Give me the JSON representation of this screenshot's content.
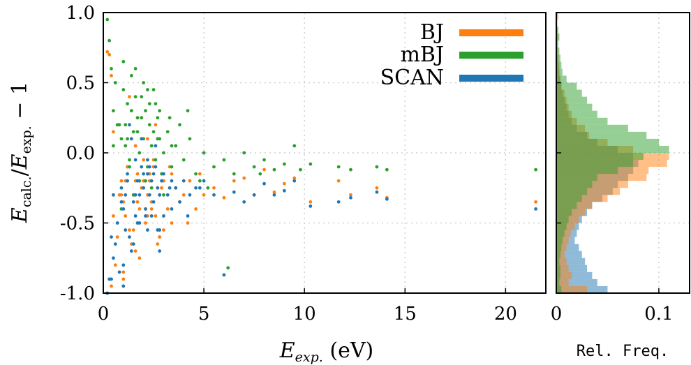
{
  "chart_data": [
    {
      "type": "scatter",
      "xlabel": {
        "main": "E",
        "sub": "exp.",
        "suffix": " (eV)"
      },
      "ylabel": {
        "num": "E",
        "num_sub": "calc.",
        "den": "E",
        "den_sub": "exp.",
        "suffix": " − 1"
      },
      "xlim": [
        0,
        22
      ],
      "ylim": [
        -1.0,
        1.0
      ],
      "x_ticks": [
        0,
        5,
        10,
        15,
        20
      ],
      "x_tick_labels": [
        "0",
        "5",
        "10",
        "15",
        "20"
      ],
      "y_ticks": [
        -1.0,
        -0.5,
        0.0,
        0.5,
        1.0
      ],
      "y_tick_labels": [
        "-1.0",
        "-0.5",
        "0.0",
        "0.5",
        "1.0"
      ],
      "grid": true,
      "legend": "top-right",
      "series": [
        {
          "name": "BJ",
          "color": "#ff7f0e",
          "x": [
            0.2,
            0.3,
            0.4,
            0.5,
            0.7,
            0.9,
            1.0,
            1.1,
            1.2,
            1.3,
            1.4,
            1.5,
            1.6,
            1.7,
            1.8,
            1.9,
            2.0,
            2.1,
            2.2,
            2.3,
            2.4,
            2.5,
            2.6,
            2.7,
            2.8,
            3.0,
            3.2,
            3.4,
            3.6,
            3.8,
            4.0,
            4.3,
            4.6,
            5.0,
            5.5,
            6.0,
            6.5,
            7.0,
            7.5,
            8.0,
            8.5,
            9.0,
            9.5,
            10.3,
            11.7,
            12.3,
            13.6,
            14.1,
            21.5,
            0.6,
            1.0,
            1.4,
            1.8,
            2.2,
            2.6,
            3.0,
            0.8,
            1.2,
            1.6,
            2.0,
            2.4,
            2.8,
            3.4,
            0.5,
            1.1,
            1.7,
            2.3,
            2.9,
            1.3,
            1.9,
            2.5,
            0.9,
            1.5,
            2.1,
            2.7,
            3.3,
            0.4,
            1.0,
            1.6,
            2.2,
            2.8,
            4.2,
            4.8
          ],
          "y": [
            0.72,
            0.7,
            0.55,
            0.15,
            -0.6,
            -0.2,
            -0.35,
            -0.45,
            -0.1,
            -0.55,
            0.3,
            -0.3,
            -0.7,
            -0.15,
            -0.4,
            -0.25,
            -0.05,
            -0.5,
            -0.3,
            -0.2,
            -0.35,
            -0.1,
            -0.45,
            -0.25,
            -0.3,
            -0.2,
            -0.4,
            -0.15,
            -0.25,
            -0.35,
            -0.3,
            -0.2,
            -0.4,
            -0.3,
            -0.25,
            -0.32,
            -0.2,
            -0.18,
            -0.3,
            -0.12,
            -0.28,
            -0.22,
            -0.18,
            -0.35,
            -0.2,
            -0.3,
            -0.25,
            -0.32,
            -0.35,
            -0.8,
            -0.9,
            -0.65,
            -0.75,
            0.1,
            0.2,
            -0.55,
            -0.3,
            -0.1,
            0.05,
            -0.2,
            -0.4,
            -0.6,
            -0.5,
            -0.45,
            -0.2,
            -0.35,
            -0.15,
            -0.25,
            0.4,
            0.25,
            -0.05,
            -0.3,
            -0.55,
            -0.4,
            -0.65,
            -0.1,
            -0.95,
            -0.85,
            -0.2,
            -0.45,
            -0.6,
            -0.5,
            -0.15
          ]
        },
        {
          "name": "mBJ",
          "color": "#2ca02c",
          "x": [
            0.2,
            0.3,
            0.4,
            0.5,
            0.7,
            0.9,
            1.0,
            1.1,
            1.2,
            1.3,
            1.4,
            1.5,
            1.6,
            1.7,
            1.8,
            1.9,
            2.0,
            2.1,
            2.2,
            2.3,
            2.4,
            2.5,
            2.6,
            2.7,
            2.8,
            3.0,
            3.2,
            3.4,
            3.6,
            3.8,
            4.0,
            4.3,
            4.6,
            5.0,
            5.5,
            6.0,
            6.5,
            7.0,
            7.5,
            8.0,
            8.5,
            9.0,
            9.5,
            10.3,
            11.7,
            12.3,
            13.6,
            14.1,
            21.5,
            0.6,
            1.0,
            1.4,
            1.8,
            2.2,
            2.6,
            3.0,
            0.8,
            1.2,
            1.6,
            2.0,
            2.4,
            2.8,
            3.4,
            0.5,
            1.1,
            1.7,
            2.3,
            2.9,
            1.3,
            1.9,
            2.5,
            0.9,
            1.5,
            2.1,
            2.7,
            3.3,
            4.2,
            4.8,
            5.2,
            6.2,
            7.8,
            9.8
          ],
          "y": [
            0.95,
            0.8,
            0.6,
            0.3,
            0.2,
            0.1,
            0.45,
            0.05,
            0.35,
            -0.05,
            0.55,
            0.15,
            0.6,
            0.25,
            0.0,
            0.4,
            0.1,
            0.3,
            -0.1,
            0.2,
            0.05,
            0.15,
            -0.05,
            0.25,
            0.1,
            0.0,
            0.15,
            -0.1,
            0.05,
            0.2,
            -0.05,
            0.1,
            -0.15,
            0.0,
            -0.1,
            -0.05,
            -0.15,
            0.0,
            -0.1,
            -0.05,
            -0.12,
            -0.08,
            0.05,
            -0.08,
            -0.1,
            -0.12,
            -0.1,
            -0.12,
            -0.12,
            0.5,
            0.65,
            0.3,
            -0.2,
            0.45,
            0.35,
            -0.3,
            0.2,
            0.1,
            0.4,
            0.5,
            -0.25,
            0.3,
            0.05,
            0.05,
            0.2,
            0.15,
            0.35,
            -0.15,
            -0.1,
            0.25,
            0.45,
            -0.4,
            -0.3,
            -0.2,
            0.1,
            0.25,
            0.3,
            -0.2,
            -0.25,
            -0.82,
            -0.15,
            -0.12
          ]
        },
        {
          "name": "SCAN",
          "color": "#1f77b4",
          "x": [
            0.2,
            0.3,
            0.4,
            0.5,
            0.7,
            0.9,
            1.0,
            1.1,
            1.2,
            1.3,
            1.4,
            1.5,
            1.6,
            1.7,
            1.8,
            1.9,
            2.0,
            2.1,
            2.2,
            2.3,
            2.4,
            2.5,
            2.6,
            2.7,
            2.8,
            3.0,
            3.2,
            3.4,
            3.6,
            3.8,
            4.0,
            4.3,
            4.6,
            5.0,
            5.5,
            6.0,
            6.5,
            7.0,
            7.5,
            8.0,
            8.5,
            9.0,
            9.5,
            10.3,
            11.7,
            12.3,
            13.6,
            14.1,
            21.5,
            0.6,
            1.0,
            1.4,
            1.8,
            2.2,
            2.6,
            3.0,
            0.8,
            1.2,
            1.6,
            2.0,
            2.4,
            2.8,
            3.4,
            0.5,
            1.1,
            1.7,
            2.3,
            2.9,
            1.3,
            1.9,
            2.5,
            0.9,
            1.5,
            2.1,
            2.7,
            3.3,
            0.4,
            1.0,
            1.6,
            2.2,
            2.8,
            4.2,
            4.8
          ],
          "y": [
            -1.0,
            -0.9,
            -0.6,
            -0.3,
            -0.5,
            -0.25,
            -0.4,
            -0.55,
            -0.15,
            -0.6,
            0.1,
            -0.35,
            -0.45,
            -0.2,
            -0.3,
            -0.1,
            -0.25,
            -0.4,
            -0.15,
            -0.3,
            -0.2,
            -0.35,
            -0.1,
            -0.25,
            -0.3,
            -0.15,
            -0.3,
            -0.2,
            -0.25,
            -0.35,
            -0.2,
            -0.3,
            -0.25,
            -0.2,
            -0.3,
            -0.87,
            -0.28,
            -0.35,
            -0.3,
            -0.22,
            -0.3,
            -0.27,
            -0.2,
            -0.38,
            -0.35,
            -0.32,
            -0.28,
            -0.33,
            -0.4,
            -0.65,
            -0.95,
            -0.7,
            -0.5,
            -0.05,
            0.05,
            -0.45,
            -0.85,
            -0.2,
            -0.05,
            -0.15,
            -0.45,
            -0.55,
            -0.4,
            -0.75,
            -0.3,
            -0.5,
            -0.1,
            -0.2,
            0.2,
            0.1,
            -0.15,
            -0.35,
            -0.65,
            -0.45,
            -0.55,
            -0.25,
            -0.9,
            -0.8,
            -0.3,
            -0.55,
            -0.7,
            -0.45,
            -0.25
          ]
        }
      ]
    },
    {
      "type": "bar",
      "orientation": "horizontal",
      "xlabel": "Rel. Freq.",
      "xlim": [
        0,
        0.13
      ],
      "x_ticks": [
        0,
        0.1
      ],
      "x_tick_labels": [
        "0",
        "0.1"
      ],
      "bin_width": 0.05,
      "bins_start": [
        0.0,
        0.05,
        0.1,
        0.15,
        0.2,
        0.25,
        0.3,
        0.35,
        0.4,
        0.45,
        0.5,
        0.55,
        0.6,
        0.65,
        0.7,
        0.75,
        0.8,
        0.85,
        0.9,
        0.95,
        1.0,
        1.05,
        1.1,
        1.15,
        1.2,
        1.25,
        1.3,
        1.35,
        1.4,
        1.45,
        1.5,
        1.55,
        1.6,
        1.65,
        1.7,
        1.75,
        1.8,
        1.85,
        1.9,
        1.95
      ],
      "series": [
        {
          "name": "BJ",
          "color": "#ff7f0e",
          "values": [
            0.03,
            0.012,
            0.015,
            0.012,
            0.01,
            0.008,
            0.01,
            0.012,
            0.014,
            0.018,
            0.022,
            0.028,
            0.035,
            0.05,
            0.062,
            0.07,
            0.088,
            0.09,
            0.108,
            0.11,
            0.075,
            0.05,
            0.032,
            0.028,
            0.02,
            0.015,
            0.012,
            0.01,
            0.008,
            0.005,
            0.004,
            0.003,
            0.003,
            0.002,
            0.002,
            0.001,
            0.002,
            0.001,
            0.001,
            0.002
          ]
        },
        {
          "name": "mBJ",
          "color": "#2ca02c",
          "values": [
            0.005,
            0.003,
            0.004,
            0.004,
            0.003,
            0.004,
            0.005,
            0.006,
            0.008,
            0.01,
            0.012,
            0.015,
            0.02,
            0.025,
            0.03,
            0.035,
            0.04,
            0.06,
            0.075,
            0.085,
            0.11,
            0.1,
            0.088,
            0.07,
            0.05,
            0.04,
            0.035,
            0.03,
            0.025,
            0.02,
            0.01,
            0.006,
            0.005,
            0.004,
            0.003,
            0.002,
            0.003,
            0.002,
            0.001,
            0.001
          ]
        },
        {
          "name": "SCAN",
          "color": "#1f77b4",
          "values": [
            0.05,
            0.04,
            0.035,
            0.03,
            0.028,
            0.025,
            0.022,
            0.018,
            0.02,
            0.022,
            0.025,
            0.03,
            0.035,
            0.045,
            0.055,
            0.06,
            0.07,
            0.075,
            0.08,
            0.075,
            0.06,
            0.04,
            0.03,
            0.02,
            0.015,
            0.012,
            0.01,
            0.008,
            0.006,
            0.005,
            0.004,
            0.003,
            0.002,
            0.002,
            0.001,
            0.001,
            0.001,
            0.001,
            0.0,
            0.0
          ]
        }
      ]
    }
  ]
}
